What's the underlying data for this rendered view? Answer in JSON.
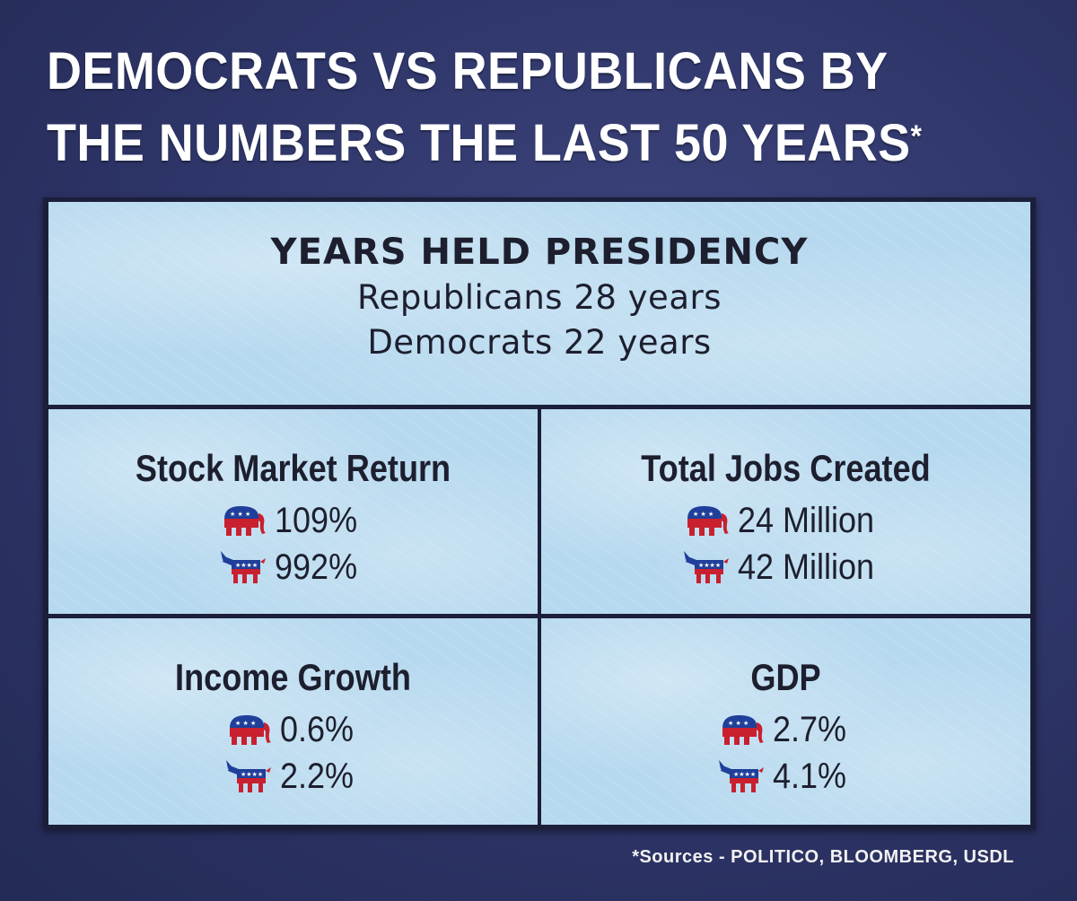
{
  "headline": {
    "line1": "DEMOCRATS VS REPUBLICANS BY",
    "line2": "THE NUMBERS THE LAST 50 YEARS",
    "asterisk": "*"
  },
  "presidency": {
    "title": "YEARS HELD PRESIDENCY",
    "republicans": "Republicans 28 years",
    "democrats": "Democrats 22 years"
  },
  "stats": {
    "stock_market": {
      "title": "Stock Market Return",
      "republican": "109%",
      "democrat": "992%"
    },
    "jobs": {
      "title": "Total Jobs Created",
      "republican": "24 Million",
      "democrat": "42 Million"
    },
    "income": {
      "title": "Income Growth",
      "republican": "0.6%",
      "democrat": "2.2%"
    },
    "gdp": {
      "title": "GDP",
      "republican": "2.7%",
      "democrat": "4.1%"
    }
  },
  "icons": {
    "republican": "gop-elephant-icon",
    "democrat": "democratic-donkey-icon"
  },
  "colors": {
    "background": "#2e3568",
    "panel": "#b7d9ef",
    "party_red": "#c8202f",
    "party_blue": "#1f3f9a"
  },
  "sources": "*Sources - POLITICO, BLOOMBERG, USDL"
}
